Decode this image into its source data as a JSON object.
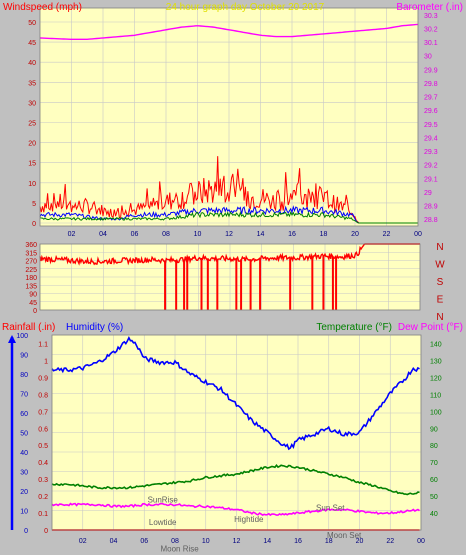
{
  "chart_data": [
    {
      "type": "line",
      "title": "24 hour graph day   October 20 2017",
      "left_axis_label": "Windspeed (mph)",
      "right_axis_label": "Barometer (.in)",
      "x_ticks": [
        "02",
        "04",
        "06",
        "08",
        "10",
        "12",
        "14",
        "16",
        "18",
        "20",
        "22",
        "00"
      ],
      "x_range_hours": [
        0,
        24
      ],
      "left_ylim": [
        0,
        50
      ],
      "left_ticks": [
        "50",
        "45",
        "40",
        "35",
        "30",
        "25",
        "20",
        "15",
        "10",
        "5",
        "0"
      ],
      "right_ylim": [
        28.75,
        30.35
      ],
      "right_ticks": [
        "30.3",
        "30.2",
        "30.1",
        "30",
        "29.9",
        "29.8",
        "29.7",
        "29.6",
        "29.5",
        "29.4",
        "29.3",
        "29.2",
        "29.1",
        "29",
        "28.9",
        "28.8"
      ],
      "grid": true,
      "series": [
        {
          "color": "#ff00ff",
          "axis": "right",
          "x": [
            0,
            2,
            3,
            4,
            5,
            6,
            8,
            9,
            10,
            11,
            12,
            13,
            14,
            15,
            16,
            17,
            18,
            19,
            20,
            21,
            22,
            23,
            24
          ],
          "y": [
            30.13,
            30.12,
            30.12,
            30.13,
            30.14,
            30.15,
            30.19,
            30.21,
            30.22,
            30.21,
            30.19,
            30.17,
            30.15,
            30.14,
            30.14,
            30.15,
            30.16,
            30.17,
            30.18,
            30.19,
            30.2,
            30.22,
            30.23
          ]
        },
        {
          "color": "#ff0000",
          "axis": "left",
          "style": "gust-noise",
          "x": [
            0,
            1,
            2,
            3,
            4,
            5,
            6,
            7,
            8,
            9,
            10,
            11,
            12,
            13,
            14,
            15,
            16,
            17,
            18,
            19,
            19.8,
            20.2,
            21,
            22,
            23,
            24
          ],
          "y": [
            4,
            5,
            4,
            4,
            3,
            2,
            3,
            4,
            5,
            6,
            7,
            8,
            7,
            6,
            6,
            5,
            6,
            6,
            6,
            4,
            3,
            0,
            0,
            0,
            0,
            0
          ]
        },
        {
          "color": "#0000ff",
          "axis": "left",
          "style": "noise",
          "x": [
            0,
            2,
            4,
            5,
            6,
            8,
            10,
            12,
            14,
            16,
            18,
            19.8,
            20.2,
            24
          ],
          "y": [
            2,
            2,
            1,
            1,
            2,
            2,
            3,
            3,
            3,
            3,
            3,
            2,
            0,
            0
          ]
        },
        {
          "color": "#008000",
          "axis": "left",
          "style": "noise",
          "x": [
            0,
            2,
            4,
            6,
            8,
            10,
            12,
            14,
            16,
            18,
            19.8,
            20.2,
            24
          ],
          "y": [
            1,
            1,
            1,
            1,
            1,
            2,
            2,
            2,
            2,
            2,
            1,
            0,
            0
          ]
        }
      ]
    },
    {
      "type": "scatter",
      "title": "",
      "y_ticks": [
        "360",
        "315",
        "270",
        "225",
        "180",
        "135",
        "90",
        "45",
        "0"
      ],
      "ylim": [
        0,
        360
      ],
      "compass_labels": [
        "N",
        "W",
        "S",
        "E",
        "N"
      ],
      "grid": true,
      "series": [
        {
          "color": "#ff0000",
          "name": "",
          "x": [
            0,
            1,
            2,
            3,
            4,
            5,
            6,
            7,
            8,
            9,
            10,
            11,
            12,
            13,
            14,
            15,
            16,
            17,
            18,
            19,
            20,
            20.5,
            21,
            22,
            23,
            24
          ],
          "y": [
            280,
            275,
            270,
            265,
            265,
            270,
            270,
            275,
            270,
            275,
            285,
            280,
            280,
            275,
            280,
            285,
            285,
            290,
            295,
            290,
            300,
            360,
            360,
            360,
            360,
            360
          ],
          "drops_to_zero_hours": [
            7.9,
            8.6,
            9.1,
            9.3,
            10.2,
            10.6,
            11.2,
            12.4,
            12.7,
            13.3,
            13.9,
            15.8,
            17.2,
            17.9,
            18.5,
            18.7
          ]
        }
      ]
    },
    {
      "type": "line",
      "title": "",
      "labels": {
        "rainfall": "Rainfall (.in)",
        "humidity": "Humidity (%)",
        "temperature": "Temperature (°F)",
        "dewpoint": "Dew Point (°F)"
      },
      "humidity_ylim": [
        0,
        100
      ],
      "humidity_ticks": [
        "100",
        "90",
        "80",
        "70",
        "60",
        "50",
        "40",
        "30",
        "20",
        "10",
        "0"
      ],
      "rain_ylim": [
        0,
        1.15
      ],
      "rain_ticks": [
        "1.1",
        "1",
        "0.9",
        "0.8",
        "0.7",
        "0.6",
        "0.5",
        "0.4",
        "0.3",
        "0.2",
        "0.1",
        "0"
      ],
      "temp_ylim": [
        30,
        145
      ],
      "temp_ticks": [
        "140",
        "130",
        "120",
        "110",
        "100",
        "90",
        "80",
        "70",
        "60",
        "50",
        "40"
      ],
      "x_ticks": [
        "02",
        "04",
        "06",
        "08",
        "10",
        "12",
        "14",
        "16",
        "18",
        "20",
        "22",
        "00"
      ],
      "annotations": [
        {
          "text": "SunRise",
          "hour": 7.2,
          "humidity": 14
        },
        {
          "text": "Lowtide",
          "hour": 7.2,
          "humidity": 2.5
        },
        {
          "text": "Moon Rise",
          "hour": 8.3,
          "humidity": -11
        },
        {
          "text": "Hightide",
          "hour": 12.8,
          "humidity": 4
        },
        {
          "text": "Sun Set",
          "hour": 18.1,
          "humidity": 10
        },
        {
          "text": "Moon Set",
          "hour": 19.0,
          "humidity": -4
        }
      ],
      "grid": true,
      "series": [
        {
          "color": "#0000ff",
          "axis": "humidity",
          "x": [
            0,
            1,
            2,
            3,
            4,
            5,
            5.5,
            6,
            7,
            8,
            9,
            10,
            11,
            12,
            13,
            14,
            15,
            15.5,
            16,
            17,
            18,
            19,
            20,
            21,
            22,
            23,
            23.5,
            24
          ],
          "y": [
            82,
            82,
            83,
            86,
            91,
            98,
            95,
            88,
            86,
            86,
            80,
            76,
            72,
            64,
            56,
            50,
            44,
            42,
            46,
            49,
            52,
            49,
            50,
            60,
            70,
            78,
            83,
            82
          ]
        },
        {
          "color": "#008000",
          "axis": "temperature",
          "x": [
            0,
            1,
            2,
            3,
            4,
            5,
            6,
            7,
            8,
            9,
            10,
            11,
            12,
            13,
            14,
            15,
            16,
            17,
            18,
            19,
            20,
            21,
            22,
            23,
            24
          ],
          "y": [
            57,
            57,
            56,
            55,
            55,
            55,
            56,
            57,
            58,
            59,
            61,
            62,
            63,
            65,
            67,
            68,
            67,
            65,
            63,
            61,
            58,
            56,
            53,
            51,
            52
          ]
        },
        {
          "color": "#ff00ff",
          "axis": "temperature",
          "x": [
            0,
            1,
            2,
            3,
            4,
            5,
            6,
            7,
            8,
            9,
            10,
            11,
            12,
            13,
            14,
            15,
            16,
            17,
            18,
            19,
            20,
            21,
            22,
            23,
            24
          ],
          "y": [
            45,
            45,
            45,
            45,
            44,
            44,
            45,
            45,
            45,
            44,
            44,
            43,
            42,
            40,
            39,
            39,
            40,
            41,
            42,
            42,
            41,
            40,
            40,
            41,
            42
          ]
        },
        {
          "color": "#ff0000",
          "axis": "rain",
          "x": [
            0,
            24
          ],
          "y": [
            0,
            0
          ]
        }
      ]
    }
  ]
}
